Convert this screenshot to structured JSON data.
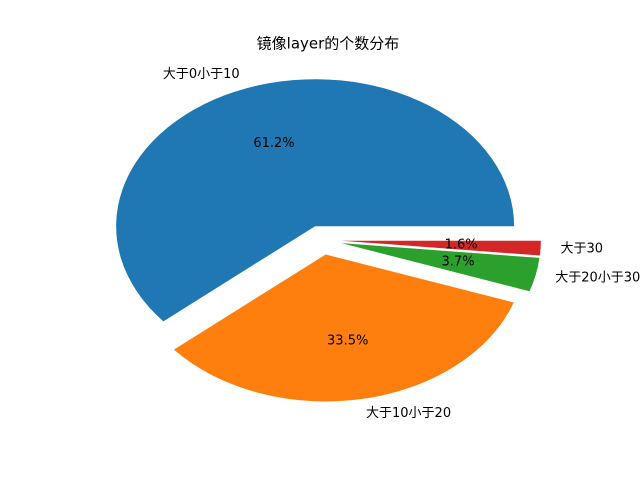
{
  "chart_data": {
    "type": "pie",
    "title": "镜像layer的个数分布",
    "categories": [
      "大于0小于10",
      "大于10小于20",
      "大于20小于30",
      "大于30"
    ],
    "values": [
      61.2,
      33.5,
      3.7,
      1.6
    ],
    "value_labels": [
      "61.2%",
      "33.5%",
      "3.7%",
      "1.6%"
    ],
    "colors": [
      "#1f77b4",
      "#ff7f0e",
      "#2ca02c",
      "#d62728"
    ],
    "explode": [
      0.1,
      0.1,
      0.1,
      0.1
    ]
  }
}
